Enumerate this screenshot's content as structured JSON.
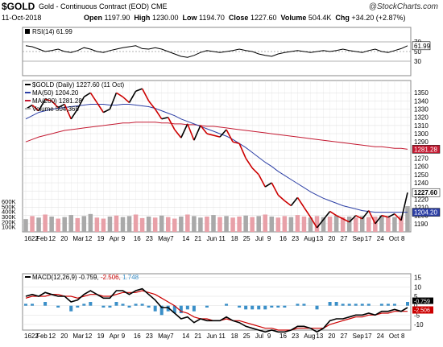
{
  "header": {
    "symbol": "$GOLD",
    "description": "Gold - Continuous Contract (EOD) CME",
    "date": "11-Oct-2018",
    "open_label": "Open",
    "open": "1197.90",
    "high_label": "High",
    "high": "1230.00",
    "low_label": "Low",
    "low": "1194.70",
    "close_label": "Close",
    "close": "1227.60",
    "volume_label": "Volume",
    "volume": "504.4K",
    "chg_label": "Chg",
    "chg": "+34.20 (+2.87%)",
    "brand": "@StockCharts.com"
  },
  "colors": {
    "price": "#000000",
    "down": "#cc0000",
    "ma50": "#2c3fa5",
    "ma200": "#c41a32",
    "volume_up": "#a9a9a9",
    "volume_down": "#e8a0a8",
    "macd_hist": "#3a8fc8",
    "grid": "#dddddd"
  },
  "chart_data": [
    {
      "panel": "rsi",
      "type": "line",
      "legend": "RSI(14) 61.99",
      "y_ticks": [
        "70",
        "50",
        "30"
      ],
      "last_label": "61.99",
      "ylim": [
        0,
        100
      ],
      "values": [
        62,
        60,
        55,
        50,
        52,
        55,
        50,
        48,
        52,
        58,
        55,
        50,
        48,
        52,
        55,
        58,
        60,
        62,
        56,
        55,
        58,
        55,
        50,
        45,
        40,
        38,
        42,
        48,
        52,
        50,
        48,
        50,
        52,
        55,
        52,
        50,
        45,
        42,
        40,
        45,
        48,
        50,
        52,
        50,
        48,
        50,
        52,
        50,
        52,
        55,
        52,
        50,
        48,
        52,
        55,
        50,
        48,
        52,
        56,
        62
      ]
    },
    {
      "panel": "price",
      "type": "line",
      "legend": {
        "price": "$GOLD (Daily) 1227.60 (11 Oct)",
        "ma50": "MA(50) 1204.20",
        "ma200": "MA(200) 1281.28",
        "volume": "Volume 504,365"
      },
      "ylim": [
        1180,
        1365
      ],
      "y_ticks": [
        1190,
        1200,
        1210,
        1220,
        1230,
        1240,
        1250,
        1260,
        1270,
        1280,
        1290,
        1300,
        1310,
        1320,
        1330,
        1340,
        1350
      ],
      "last_labels": {
        "price": "1227.60",
        "ma50": "1204.20",
        "ma200": "1281.28"
      },
      "x_labels": [
        "1622",
        "Feb",
        "12",
        "20",
        "Mar",
        "12",
        "19",
        "Apr",
        "9",
        "16",
        "23",
        "May",
        "7",
        "14",
        "21",
        "Jun",
        "11",
        "18",
        "25",
        "Jul",
        "9",
        "16",
        "23",
        "Aug",
        "13",
        "20",
        "27",
        "Sep",
        "17",
        "24",
        "Oct",
        "8"
      ],
      "price": [
        1330,
        1335,
        1328,
        1342,
        1340,
        1332,
        1336,
        1318,
        1330,
        1345,
        1350,
        1338,
        1326,
        1330,
        1350,
        1345,
        1338,
        1352,
        1355,
        1340,
        1330,
        1318,
        1320,
        1305,
        1295,
        1312,
        1292,
        1310,
        1300,
        1298,
        1296,
        1305,
        1290,
        1288,
        1270,
        1258,
        1250,
        1235,
        1240,
        1225,
        1218,
        1212,
        1222,
        1210,
        1198,
        1185,
        1195,
        1205,
        1200,
        1196,
        1192,
        1200,
        1196,
        1206,
        1190,
        1200,
        1198,
        1202,
        1194,
        1228
      ],
      "ma50": [
        1318,
        1322,
        1326,
        1328,
        1330,
        1331,
        1332,
        1333,
        1334,
        1335,
        1336,
        1336,
        1336,
        1335,
        1335,
        1336,
        1336,
        1335,
        1334,
        1333,
        1331,
        1328,
        1325,
        1322,
        1318,
        1315,
        1312,
        1309,
        1306,
        1303,
        1300,
        1297,
        1293,
        1288,
        1283,
        1277,
        1271,
        1265,
        1260,
        1254,
        1249,
        1244,
        1239,
        1234,
        1229,
        1225,
        1221,
        1218,
        1215,
        1212,
        1210,
        1208,
        1206,
        1205,
        1204,
        1204,
        1204,
        1204,
        1204,
        1204
      ],
      "ma200": [
        1290,
        1293,
        1296,
        1298,
        1300,
        1302,
        1304,
        1305,
        1306,
        1307,
        1308,
        1309,
        1310,
        1311,
        1312,
        1313,
        1313,
        1314,
        1314,
        1314,
        1314,
        1313,
        1313,
        1312,
        1312,
        1311,
        1311,
        1310,
        1309,
        1309,
        1308,
        1307,
        1306,
        1305,
        1304,
        1303,
        1302,
        1301,
        1300,
        1299,
        1298,
        1297,
        1296,
        1295,
        1294,
        1293,
        1292,
        1291,
        1290,
        1289,
        1288,
        1287,
        1286,
        1285,
        1284,
        1284,
        1283,
        1282,
        1282,
        1281
      ]
    },
    {
      "panel": "volume",
      "type": "bar",
      "y_ticks": [
        "600K",
        "500K",
        "400K",
        "300K",
        "200K",
        "100K"
      ],
      "ylim": [
        0,
        600
      ],
      "values": [
        250,
        310,
        280,
        340,
        300,
        260,
        290,
        330,
        270,
        310,
        350,
        280,
        260,
        300,
        320,
        290,
        310,
        340,
        270,
        300,
        280,
        320,
        290,
        260,
        300,
        340,
        310,
        280,
        300,
        330,
        290,
        310,
        280,
        300,
        320,
        290,
        310,
        340,
        300,
        280,
        310,
        290,
        330,
        300,
        280,
        310,
        290,
        300,
        320,
        290,
        300,
        280,
        310,
        290,
        300,
        320,
        300,
        290,
        310,
        504
      ],
      "down": [
        false,
        true,
        false,
        true,
        false,
        true,
        false,
        false,
        true,
        false,
        false,
        true,
        true,
        false,
        true,
        false,
        false,
        true,
        true,
        false,
        true,
        false,
        true,
        true,
        false,
        true,
        false,
        false,
        true,
        false,
        true,
        false,
        true,
        true,
        false,
        true,
        false,
        true,
        false,
        true,
        true,
        false,
        true,
        true,
        false,
        true,
        false,
        true,
        false,
        true,
        false,
        true,
        false,
        true,
        true,
        false,
        true,
        false,
        true,
        false
      ]
    },
    {
      "panel": "macd",
      "type": "line",
      "legend": {
        "label": "MACD(12,26,9)",
        "macd": "-0.759",
        "signal": "-2.506",
        "hist": "1.748"
      },
      "y_ticks": [
        "15",
        "10",
        "5",
        "0",
        "-5",
        "-10"
      ],
      "last_labels": {
        "signal": "-2.506",
        "macd": "-0.759"
      },
      "ylim": [
        -13,
        17
      ],
      "macd": [
        5,
        6,
        5,
        7,
        6,
        5,
        5,
        2,
        3,
        6,
        8,
        6,
        4,
        4,
        8,
        8,
        6,
        8,
        9,
        6,
        3,
        -1,
        -1,
        -4,
        -7,
        -6,
        -9,
        -7,
        -8,
        -8,
        -8,
        -6,
        -8,
        -9,
        -11,
        -12,
        -13,
        -14,
        -13,
        -14,
        -14,
        -13,
        -11,
        -11,
        -12,
        -14,
        -12,
        -8,
        -7,
        -7,
        -6,
        -5,
        -5,
        -4,
        -5,
        -3,
        -3,
        -2,
        -3,
        -1
      ],
      "signal": [
        4,
        5,
        5,
        5,
        6,
        6,
        5,
        5,
        4,
        5,
        6,
        6,
        5,
        5,
        6,
        7,
        7,
        7,
        8,
        7,
        6,
        4,
        2,
        0,
        -3,
        -4,
        -6,
        -7,
        -7,
        -8,
        -8,
        -7,
        -8,
        -8,
        -9,
        -10,
        -11,
        -12,
        -12,
        -13,
        -13,
        -13,
        -12,
        -12,
        -12,
        -12,
        -12,
        -10,
        -9,
        -8,
        -7,
        -6,
        -6,
        -5,
        -5,
        -4,
        -4,
        -3,
        -3,
        -3
      ]
    }
  ]
}
